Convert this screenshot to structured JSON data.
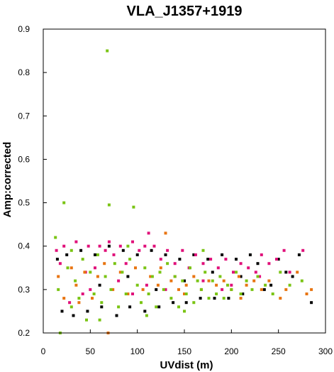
{
  "chart_data": {
    "type": "scatter",
    "title": "VLA_J1357+1919",
    "xlabel": "UVdist (m)",
    "ylabel": "Amp:corrected",
    "xlim": [
      0,
      300
    ],
    "ylim": [
      0.2,
      0.9
    ],
    "xticks": [
      "0",
      "50",
      "100",
      "150",
      "200",
      "250",
      "300"
    ],
    "yticks": [
      "0.2",
      "0.3",
      "0.4",
      "0.5",
      "0.6",
      "0.7",
      "0.8",
      "0.9"
    ],
    "grid": false,
    "legend": "none",
    "series": [
      {
        "color": "#000000",
        "points": [
          [
            15,
            0.37
          ],
          [
            20,
            0.25
          ],
          [
            25,
            0.38
          ],
          [
            32,
            0.24
          ],
          [
            40,
            0.39
          ],
          [
            47,
            0.25
          ],
          [
            55,
            0.38
          ],
          [
            62,
            0.26
          ],
          [
            70,
            0.4
          ],
          [
            78,
            0.24
          ],
          [
            85,
            0.39
          ],
          [
            92,
            0.26
          ],
          [
            100,
            0.38
          ],
          [
            108,
            0.25
          ],
          [
            115,
            0.39
          ],
          [
            123,
            0.26
          ],
          [
            130,
            0.38
          ],
          [
            138,
            0.27
          ],
          [
            145,
            0.37
          ],
          [
            152,
            0.27
          ],
          [
            160,
            0.38
          ],
          [
            167,
            0.28
          ],
          [
            175,
            0.37
          ],
          [
            182,
            0.28
          ],
          [
            190,
            0.38
          ],
          [
            197,
            0.28
          ],
          [
            205,
            0.37
          ],
          [
            212,
            0.29
          ],
          [
            220,
            0.38
          ],
          [
            228,
            0.36
          ],
          [
            235,
            0.3
          ],
          [
            242,
            0.31
          ],
          [
            250,
            0.37
          ],
          [
            258,
            0.34
          ],
          [
            265,
            0.33
          ],
          [
            272,
            0.38
          ],
          [
            285,
            0.27
          ],
          [
            60,
            0.31
          ],
          [
            90,
            0.33
          ],
          [
            120,
            0.3
          ],
          [
            150,
            0.32
          ],
          [
            180,
            0.34
          ],
          [
            210,
            0.33
          ]
        ]
      },
      {
        "color": "#e0107a",
        "points": [
          [
            14,
            0.39
          ],
          [
            18,
            0.36
          ],
          [
            22,
            0.4
          ],
          [
            28,
            0.27
          ],
          [
            35,
            0.41
          ],
          [
            42,
            0.29
          ],
          [
            48,
            0.4
          ],
          [
            55,
            0.35
          ],
          [
            60,
            0.4
          ],
          [
            66,
            0.39
          ],
          [
            70,
            0.41
          ],
          [
            75,
            0.38
          ],
          [
            82,
            0.4
          ],
          [
            88,
            0.36
          ],
          [
            95,
            0.41
          ],
          [
            102,
            0.39
          ],
          [
            108,
            0.4
          ],
          [
            112,
            0.43
          ],
          [
            118,
            0.4
          ],
          [
            125,
            0.37
          ],
          [
            132,
            0.39
          ],
          [
            140,
            0.36
          ],
          [
            148,
            0.39
          ],
          [
            155,
            0.35
          ],
          [
            162,
            0.38
          ],
          [
            170,
            0.36
          ],
          [
            178,
            0.37
          ],
          [
            186,
            0.35
          ],
          [
            194,
            0.37
          ],
          [
            202,
            0.34
          ],
          [
            210,
            0.36
          ],
          [
            218,
            0.35
          ],
          [
            226,
            0.34
          ],
          [
            232,
            0.38
          ],
          [
            240,
            0.36
          ],
          [
            248,
            0.37
          ],
          [
            256,
            0.39
          ],
          [
            262,
            0.34
          ],
          [
            276,
            0.39
          ],
          [
            50,
            0.3
          ],
          [
            80,
            0.32
          ],
          [
            110,
            0.31
          ],
          [
            140,
            0.33
          ],
          [
            170,
            0.32
          ],
          [
            200,
            0.31
          ],
          [
            230,
            0.33
          ],
          [
            45,
            0.34
          ],
          [
            95,
            0.29
          ],
          [
            130,
            0.3
          ],
          [
            190,
            0.3
          ]
        ]
      },
      {
        "color": "#e87410",
        "points": [
          [
            16,
            0.33
          ],
          [
            22,
            0.28
          ],
          [
            30,
            0.35
          ],
          [
            38,
            0.27
          ],
          [
            44,
            0.34
          ],
          [
            52,
            0.28
          ],
          [
            58,
            0.33
          ],
          [
            65,
            0.36
          ],
          [
            69,
            0.2
          ],
          [
            74,
            0.3
          ],
          [
            82,
            0.34
          ],
          [
            90,
            0.29
          ],
          [
            98,
            0.35
          ],
          [
            106,
            0.3
          ],
          [
            114,
            0.33
          ],
          [
            122,
            0.31
          ],
          [
            130,
            0.43
          ],
          [
            136,
            0.32
          ],
          [
            144,
            0.3
          ],
          [
            152,
            0.31
          ],
          [
            160,
            0.33
          ],
          [
            168,
            0.3
          ],
          [
            176,
            0.32
          ],
          [
            184,
            0.31
          ],
          [
            192,
            0.32
          ],
          [
            200,
            0.3
          ],
          [
            208,
            0.33
          ],
          [
            216,
            0.31
          ],
          [
            224,
            0.32
          ],
          [
            232,
            0.3
          ],
          [
            240,
            0.32
          ],
          [
            252,
            0.28
          ],
          [
            258,
            0.3
          ],
          [
            270,
            0.34
          ],
          [
            280,
            0.29
          ],
          [
            285,
            0.3
          ],
          [
            150,
            0.29
          ],
          [
            210,
            0.28
          ],
          [
            35,
            0.31
          ],
          [
            125,
            0.35
          ]
        ]
      },
      {
        "color": "#7ac414",
        "points": [
          [
            13,
            0.42
          ],
          [
            16,
            0.3
          ],
          [
            18,
            0.2
          ],
          [
            22,
            0.5
          ],
          [
            26,
            0.35
          ],
          [
            30,
            0.26
          ],
          [
            34,
            0.32
          ],
          [
            38,
            0.28
          ],
          [
            42,
            0.37
          ],
          [
            46,
            0.23
          ],
          [
            50,
            0.34
          ],
          [
            54,
            0.29
          ],
          [
            58,
            0.38
          ],
          [
            62,
            0.27
          ],
          [
            66,
            0.33
          ],
          [
            68,
            0.85
          ],
          [
            70,
            0.495
          ],
          [
            72,
            0.3
          ],
          [
            76,
            0.36
          ],
          [
            80,
            0.26
          ],
          [
            84,
            0.34
          ],
          [
            88,
            0.29
          ],
          [
            92,
            0.37
          ],
          [
            96,
            0.49
          ],
          [
            100,
            0.31
          ],
          [
            104,
            0.27
          ],
          [
            108,
            0.35
          ],
          [
            112,
            0.29
          ],
          [
            116,
            0.33
          ],
          [
            120,
            0.26
          ],
          [
            124,
            0.34
          ],
          [
            128,
            0.3
          ],
          [
            132,
            0.36
          ],
          [
            136,
            0.28
          ],
          [
            140,
            0.33
          ],
          [
            144,
            0.26
          ],
          [
            148,
            0.32
          ],
          [
            152,
            0.29
          ],
          [
            156,
            0.35
          ],
          [
            160,
            0.27
          ],
          [
            164,
            0.32
          ],
          [
            168,
            0.3
          ],
          [
            172,
            0.34
          ],
          [
            176,
            0.28
          ],
          [
            180,
            0.32
          ],
          [
            184,
            0.29
          ],
          [
            188,
            0.33
          ],
          [
            192,
            0.28
          ],
          [
            196,
            0.31
          ],
          [
            200,
            0.3
          ],
          [
            205,
            0.34
          ],
          [
            210,
            0.29
          ],
          [
            216,
            0.32
          ],
          [
            222,
            0.3
          ],
          [
            228,
            0.33
          ],
          [
            236,
            0.31
          ],
          [
            244,
            0.29
          ],
          [
            252,
            0.34
          ],
          [
            262,
            0.31
          ],
          [
            275,
            0.32
          ],
          [
            60,
            0.23
          ],
          [
            110,
            0.24
          ],
          [
            150,
            0.25
          ],
          [
            30,
            0.39
          ],
          [
            90,
            0.4
          ],
          [
            170,
            0.39
          ]
        ]
      }
    ]
  }
}
